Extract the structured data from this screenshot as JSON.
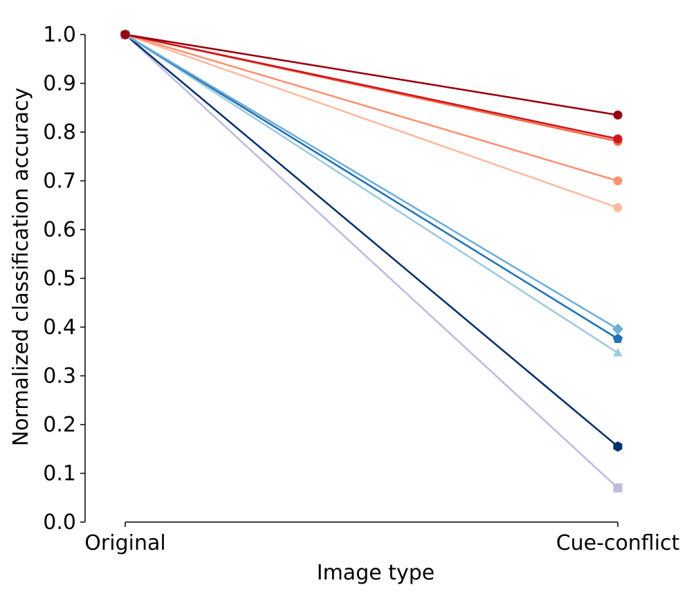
{
  "chart_data": {
    "type": "line",
    "xlabel": "Image type",
    "ylabel": "Normalized classification accuracy",
    "categories": [
      "Original",
      "Cue-conflict"
    ],
    "ylim": [
      0.0,
      1.0
    ],
    "yticks": [
      "0.0",
      "0.1",
      "0.2",
      "0.3",
      "0.4",
      "0.5",
      "0.6",
      "0.7",
      "0.8",
      "0.9",
      "1.0"
    ],
    "grid": false,
    "legend": "none",
    "series": [
      {
        "values": [
          1.0,
          0.07
        ],
        "color": "#bcbddc",
        "marker": "square"
      },
      {
        "values": [
          1.0,
          0.155
        ],
        "color": "#08306b",
        "marker": "hexagon"
      },
      {
        "values": [
          1.0,
          0.347
        ],
        "color": "#9ecae1",
        "marker": "triangle"
      },
      {
        "values": [
          1.0,
          0.376
        ],
        "color": "#2171b5",
        "marker": "pentagon"
      },
      {
        "values": [
          1.0,
          0.396
        ],
        "color": "#6baed6",
        "marker": "diamond"
      },
      {
        "values": [
          1.0,
          0.645
        ],
        "color": "#fcbba1",
        "marker": "circle"
      },
      {
        "values": [
          1.0,
          0.7
        ],
        "color": "#fc9272",
        "marker": "circle"
      },
      {
        "values": [
          1.0,
          0.781
        ],
        "color": "#fb6a4a",
        "marker": "circle"
      },
      {
        "values": [
          1.0,
          0.786
        ],
        "color": "#cb181d",
        "marker": "circle"
      },
      {
        "values": [
          1.0,
          0.835
        ],
        "color": "#99000d",
        "marker": "circle"
      }
    ]
  }
}
